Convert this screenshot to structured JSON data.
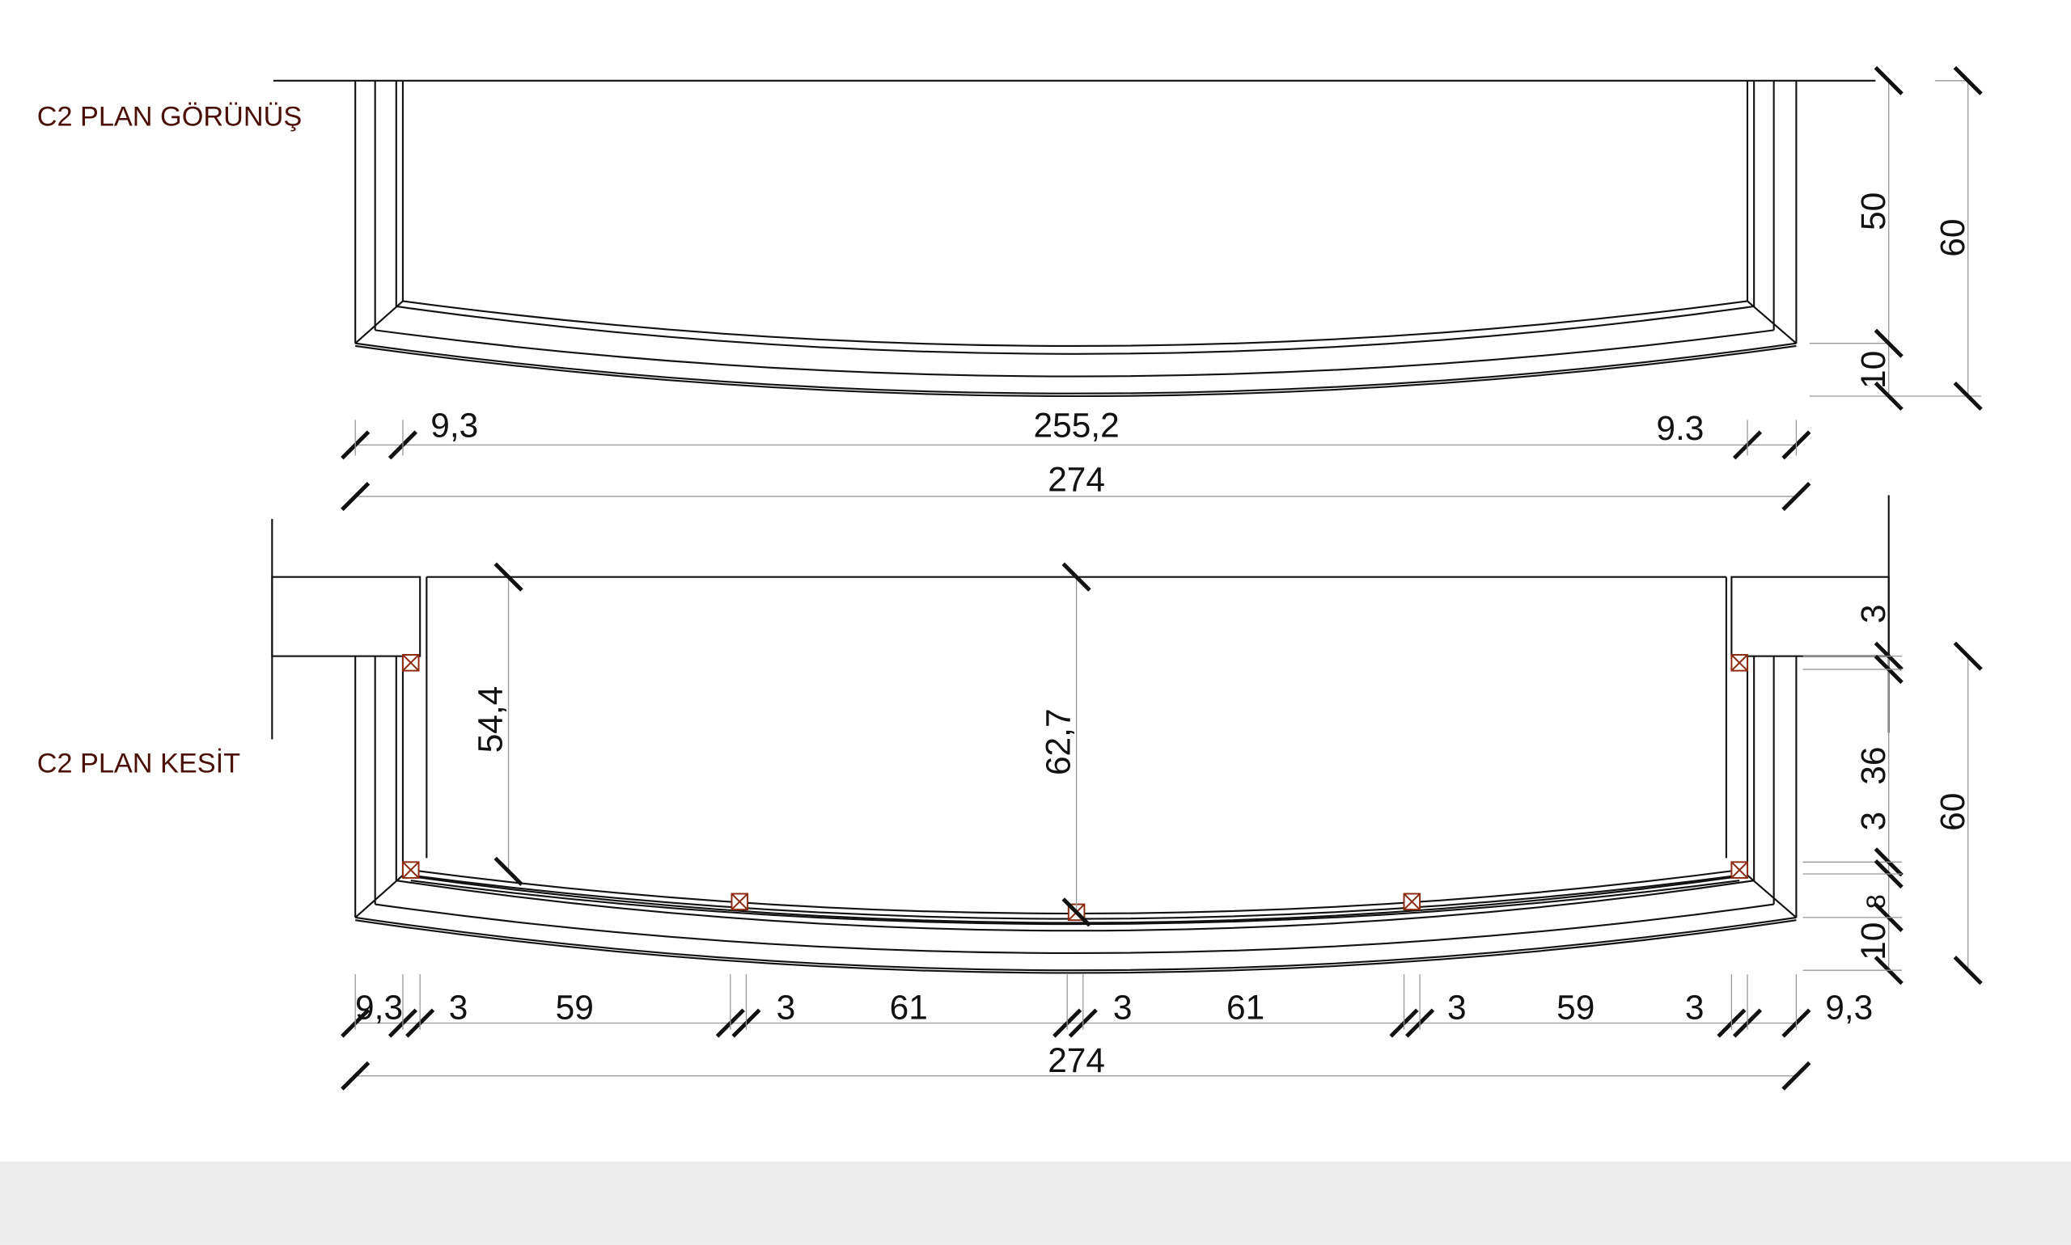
{
  "titles": {
    "plan_view": "C2 PLAN GÖRÜNÜŞ",
    "plan_section": "C2 PLAN KESİT"
  },
  "plan_view": {
    "dims_horizontal": [
      "9,3",
      "255,2",
      "9.3"
    ],
    "dim_total": "274",
    "dims_vertical": [
      "50",
      "10"
    ],
    "dim_vertical_total": "60"
  },
  "plan_section": {
    "interior_heights": [
      "54,4",
      "62,7"
    ],
    "dims_horizontal": [
      "9,3",
      "3",
      "59",
      "3",
      "61",
      "3",
      "61",
      "3",
      "59",
      "3",
      "9,3"
    ],
    "dim_total": "274",
    "dims_vertical": [
      "3",
      "36",
      "3",
      "8",
      "10"
    ],
    "dim_vertical_total": "60"
  },
  "colors": {
    "title": "#4a1008",
    "marker": "#8b2a10",
    "line": "#111111"
  }
}
